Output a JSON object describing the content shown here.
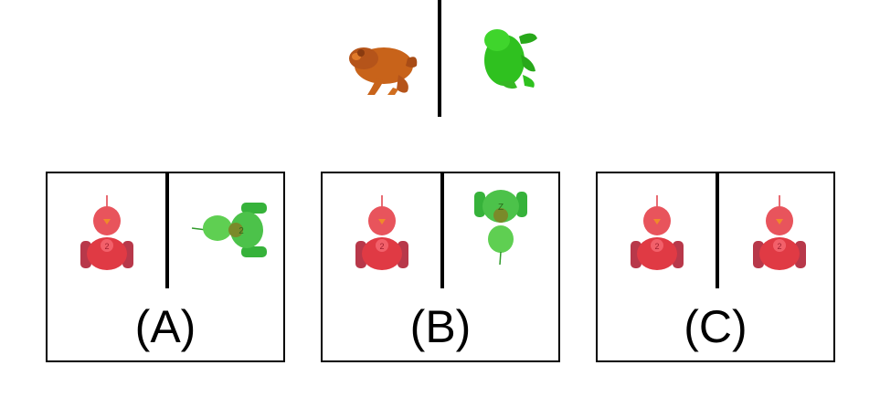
{
  "prompt": {
    "left_figure": {
      "icon": "orange-frog-icon",
      "color": "#c8631a"
    },
    "right_figure": {
      "icon": "green-frog-icon",
      "color": "#2fc11f"
    }
  },
  "options": [
    {
      "label": "(A)",
      "left_icon": "red-toy-robot-icon",
      "right_icon": "green-toy-robot-icon",
      "right_rotation": "rotated-90-left"
    },
    {
      "label": "(B)",
      "left_icon": "red-toy-robot-icon",
      "right_icon": "green-toy-robot-icon",
      "right_rotation": "upside-down"
    },
    {
      "label": "(C)",
      "left_icon": "red-toy-robot-icon",
      "right_icon": "red-toy-robot-icon",
      "right_rotation": "none"
    }
  ],
  "colors": {
    "red_toy": "#e03a44",
    "green_toy": "#4cc24a"
  }
}
